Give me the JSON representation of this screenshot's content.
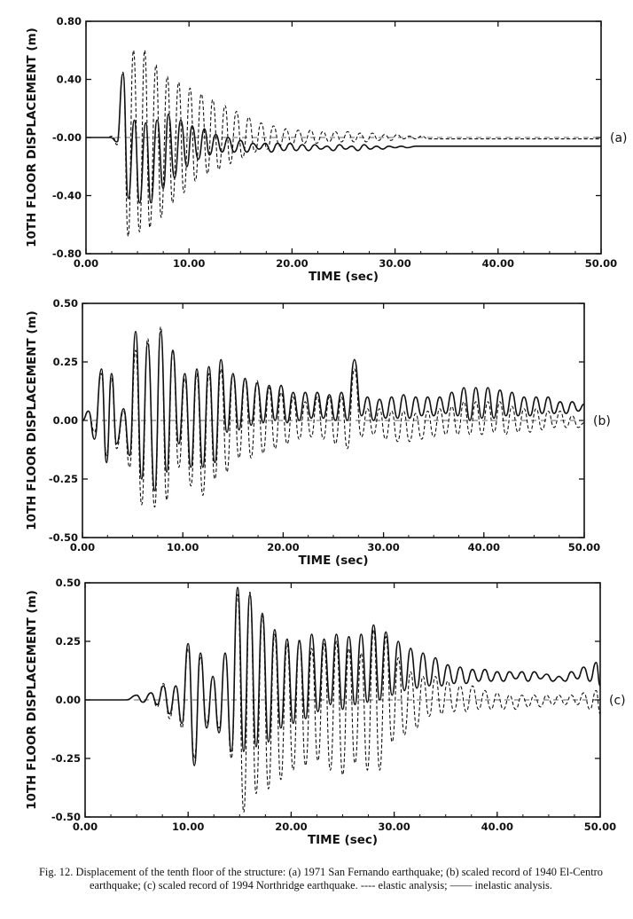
{
  "caption": "Fig. 12. Displacement of the tenth floor of the structure: (a) 1971 San Fernando earthquake; (b) scaled record of 1940 El-Centro earthquake; (c) scaled record of 1994 Northridge earthquake. ---- elastic analysis; —— inelastic analysis.",
  "chart_data": [
    {
      "type": "line",
      "panel_label": "(a)",
      "xlabel": "TIME  (sec)",
      "ylabel": "10TH FLOOR DISPLACEMENT (m)",
      "xlim": [
        0,
        50
      ],
      "ylim": [
        -0.8,
        0.8
      ],
      "x_ticks": [
        "0.00",
        "10.00",
        "20.00",
        "30.00",
        "40.00",
        "50.00"
      ],
      "y_ticks": [
        "-0.80",
        "-0.40",
        "-0.00",
        "0.40",
        "0.80"
      ],
      "grid": false,
      "series": [
        {
          "style": "dashed",
          "x": [
            0,
            2,
            2.6,
            3,
            3.6,
            4.1,
            4.6,
            5.2,
            5.7,
            6.2,
            6.8,
            7.3,
            7.9,
            8.4,
            9,
            9.5,
            10.1,
            10.6,
            11.2,
            11.8,
            12.3,
            12.9,
            13.5,
            14,
            14.6,
            15.2,
            15.8,
            16.4,
            17,
            17.6,
            18.2,
            18.8,
            19.4,
            20,
            20.6,
            21.2,
            21.8,
            22.4,
            23,
            23.6,
            24.2,
            24.8,
            25.4,
            26,
            26.6,
            27.2,
            27.8,
            28.4,
            29,
            29.6,
            30.2,
            30.8,
            31.4,
            32,
            32.6,
            33.2,
            34,
            50
          ],
          "y": [
            0,
            0,
            0.01,
            -0.05,
            0.45,
            -0.68,
            0.6,
            -0.65,
            0.6,
            -0.62,
            0.5,
            -0.55,
            0.42,
            -0.45,
            0.38,
            -0.38,
            0.34,
            -0.3,
            0.3,
            -0.25,
            0.26,
            -0.22,
            0.22,
            -0.18,
            0.18,
            -0.14,
            0.14,
            -0.1,
            0.1,
            -0.08,
            0.08,
            -0.06,
            0.06,
            -0.05,
            0.05,
            -0.04,
            0.05,
            -0.04,
            0.04,
            -0.03,
            0.04,
            -0.03,
            0.04,
            -0.03,
            0.03,
            -0.03,
            0.03,
            -0.02,
            0.02,
            -0.02,
            0.02,
            -0.01,
            0.01,
            -0.01,
            0.01,
            -0.01,
            -0.01,
            -0.01
          ]
        },
        {
          "style": "solid",
          "x": [
            0,
            2.4,
            3,
            3.6,
            4.1,
            4.7,
            5.2,
            5.8,
            6.3,
            6.9,
            7.5,
            8,
            8.6,
            9.2,
            9.8,
            10.3,
            10.9,
            11.5,
            12,
            12.6,
            13.2,
            13.8,
            14.4,
            15,
            15.6,
            16.2,
            16.8,
            17.4,
            18,
            18.6,
            19.2,
            19.8,
            20.4,
            21,
            21.6,
            22.2,
            22.8,
            23.4,
            24,
            24.6,
            25.2,
            25.8,
            26.4,
            27,
            27.6,
            28.2,
            28.8,
            29.4,
            30,
            30.6,
            31.2,
            32,
            50
          ],
          "y": [
            0,
            0,
            -0.03,
            0.44,
            -0.42,
            0.12,
            -0.45,
            0.1,
            -0.45,
            0.12,
            -0.35,
            0.16,
            -0.28,
            0.12,
            -0.2,
            0.08,
            -0.15,
            0.06,
            -0.12,
            0.02,
            -0.1,
            0.0,
            -0.1,
            -0.02,
            -0.1,
            -0.04,
            -0.08,
            -0.04,
            -0.1,
            -0.04,
            -0.09,
            -0.04,
            -0.09,
            -0.05,
            -0.09,
            -0.05,
            -0.08,
            -0.06,
            -0.09,
            -0.05,
            -0.08,
            -0.06,
            -0.09,
            -0.05,
            -0.08,
            -0.06,
            -0.08,
            -0.06,
            -0.07,
            -0.06,
            -0.07,
            -0.06,
            -0.06
          ]
        }
      ]
    },
    {
      "type": "line",
      "panel_label": "(b)",
      "xlabel": "TIME  (sec)",
      "ylabel": "10TH FLOOR DISPLACEMENT (m)",
      "xlim": [
        0,
        50
      ],
      "ylim": [
        -0.5,
        0.5
      ],
      "x_ticks": [
        "0.00",
        "10.00",
        "20.00",
        "30.00",
        "40.00",
        "50.00"
      ],
      "y_ticks": [
        "-0.50",
        "-0.25",
        "0.00",
        "0.25",
        "0.50"
      ],
      "grid": false,
      "series": [
        {
          "style": "dashed",
          "x": [
            0,
            0.6,
            1.2,
            1.9,
            2.4,
            2.9,
            3.4,
            4.1,
            4.7,
            5.3,
            5.9,
            6.5,
            7.2,
            7.8,
            8.4,
            9,
            9.6,
            10.2,
            10.8,
            11.4,
            12,
            12.6,
            13.2,
            13.8,
            14.4,
            15,
            15.6,
            16.2,
            16.8,
            17.4,
            18,
            18.6,
            19.2,
            19.8,
            20.4,
            21,
            21.6,
            22.2,
            22.8,
            23.4,
            24,
            24.6,
            25.2,
            25.8,
            26.4,
            27.1,
            27.8,
            28.4,
            29,
            29.6,
            30.2,
            30.8,
            31.4,
            32,
            32.6,
            33.2,
            33.8,
            34.4,
            35,
            35.6,
            36.2,
            36.8,
            37.4,
            38,
            38.6,
            39.2,
            39.8,
            40.4,
            41,
            41.6,
            42.2,
            42.8,
            43.4,
            44,
            44.6,
            45.2,
            45.8,
            46.4,
            47,
            47.6,
            48.2,
            48.8,
            49.4,
            50
          ],
          "y": [
            0,
            0.04,
            -0.05,
            0.2,
            -0.15,
            0.18,
            -0.12,
            0.04,
            -0.2,
            0.3,
            -0.36,
            0.35,
            -0.37,
            0.4,
            -0.34,
            0.3,
            -0.2,
            0.18,
            -0.28,
            0.2,
            -0.32,
            0.2,
            -0.25,
            0.22,
            -0.22,
            0.2,
            -0.16,
            0.18,
            -0.16,
            0.17,
            -0.14,
            0.14,
            -0.12,
            0.12,
            -0.1,
            0.1,
            -0.08,
            0.08,
            -0.07,
            0.1,
            -0.08,
            0.1,
            -0.1,
            0.1,
            -0.12,
            0.22,
            -0.07,
            0.05,
            -0.06,
            0.05,
            -0.08,
            0.04,
            -0.09,
            0.04,
            -0.09,
            0.03,
            -0.08,
            0.04,
            -0.07,
            0.05,
            -0.06,
            0.06,
            -0.06,
            0.08,
            -0.06,
            0.08,
            -0.06,
            0.08,
            -0.05,
            0.08,
            -0.06,
            0.06,
            -0.05,
            0.05,
            -0.05,
            0.05,
            -0.04,
            0.04,
            -0.03,
            0.04,
            -0.03,
            0.02,
            -0.03,
            -0.01
          ]
        },
        {
          "style": "solid",
          "x": [
            0,
            0.6,
            1.2,
            1.9,
            2.4,
            2.9,
            3.4,
            4.1,
            4.7,
            5.3,
            5.9,
            6.5,
            7.2,
            7.8,
            8.4,
            9,
            9.6,
            10.2,
            10.8,
            11.4,
            12,
            12.6,
            13.2,
            13.8,
            14.4,
            15,
            15.6,
            16.2,
            16.8,
            17.4,
            18,
            18.6,
            19.2,
            19.8,
            20.4,
            21,
            21.6,
            22.2,
            22.8,
            23.4,
            24,
            24.6,
            25.2,
            25.8,
            26.4,
            27.1,
            27.8,
            28.4,
            29,
            29.6,
            30.2,
            30.8,
            31.4,
            32,
            32.6,
            33.2,
            33.8,
            34.4,
            35,
            35.6,
            36.2,
            36.8,
            37.4,
            38,
            38.6,
            39.2,
            39.8,
            40.4,
            41,
            41.6,
            42.2,
            42.8,
            43.4,
            44,
            44.6,
            45.2,
            45.8,
            46.4,
            47,
            47.6,
            48.2,
            48.8,
            49.4,
            50
          ],
          "y": [
            0,
            0.04,
            -0.08,
            0.22,
            -0.18,
            0.2,
            -0.1,
            0.05,
            -0.15,
            0.38,
            -0.25,
            0.33,
            -0.3,
            0.38,
            -0.22,
            0.3,
            -0.1,
            0.2,
            -0.2,
            0.22,
            -0.2,
            0.23,
            -0.18,
            0.26,
            -0.05,
            0.2,
            -0.04,
            0.18,
            -0.02,
            0.16,
            -0.01,
            0.15,
            0.0,
            0.15,
            -0.01,
            0.12,
            0.0,
            0.12,
            0.01,
            0.12,
            0.01,
            0.11,
            0.0,
            0.12,
            0.0,
            0.26,
            0.02,
            0.1,
            0.0,
            0.09,
            0.01,
            0.1,
            0.01,
            0.11,
            0.01,
            0.1,
            0.02,
            0.1,
            0.02,
            0.1,
            0.03,
            0.12,
            0.02,
            0.14,
            0.0,
            0.14,
            0.01,
            0.14,
            0.01,
            0.13,
            0.02,
            0.12,
            0.02,
            0.1,
            0.02,
            0.1,
            0.03,
            0.1,
            0.03,
            0.08,
            0.03,
            0.08,
            0.04,
            0.07
          ]
        }
      ]
    },
    {
      "type": "line",
      "panel_label": "(c)",
      "xlabel": "TIME  (sec)",
      "ylabel": "10TH FLOOR DISPLACEMENT (m)",
      "xlim": [
        0,
        50
      ],
      "ylim": [
        -0.5,
        0.5
      ],
      "x_ticks": [
        "0.00",
        "10.00",
        "20.00",
        "30.00",
        "40.00",
        "50.00"
      ],
      "y_ticks": [
        "-0.50",
        "-0.25",
        "0.00",
        "0.25",
        "0.50"
      ],
      "grid": false,
      "series": [
        {
          "style": "dashed",
          "x": [
            0,
            4,
            5,
            5.6,
            6.4,
            7,
            7.6,
            8.2,
            8.8,
            9.4,
            10,
            10.6,
            11.2,
            11.8,
            12.4,
            13,
            13.6,
            14.2,
            14.8,
            15.4,
            16,
            16.6,
            17.2,
            17.8,
            18.4,
            19,
            19.6,
            20.2,
            20.8,
            21.4,
            22,
            22.6,
            23.2,
            23.8,
            24.4,
            25,
            25.6,
            26.2,
            26.8,
            27.4,
            28,
            28.6,
            29.2,
            29.8,
            30.4,
            31,
            31.6,
            32.2,
            32.8,
            33.4,
            34,
            34.6,
            35.2,
            35.8,
            36.4,
            37,
            37.6,
            38.2,
            38.8,
            39.4,
            40,
            40.6,
            41.2,
            41.8,
            42.4,
            43,
            43.6,
            44.2,
            44.8,
            45.4,
            46,
            46.6,
            47.2,
            47.8,
            48.4,
            49,
            49.6,
            50
          ],
          "y": [
            0,
            0,
            0.02,
            -0.01,
            0.03,
            -0.03,
            0.07,
            -0.08,
            0.06,
            -0.12,
            0.22,
            -0.25,
            0.18,
            -0.1,
            0.1,
            -0.12,
            0.2,
            -0.25,
            0.45,
            -0.48,
            0.46,
            -0.4,
            0.36,
            -0.38,
            0.28,
            -0.34,
            0.24,
            -0.3,
            0.26,
            -0.28,
            0.22,
            -0.26,
            0.24,
            -0.3,
            0.25,
            -0.32,
            0.22,
            -0.27,
            0.2,
            -0.3,
            0.3,
            -0.3,
            0.27,
            -0.18,
            0.18,
            -0.15,
            0.12,
            -0.12,
            0.1,
            -0.07,
            0.1,
            -0.06,
            0.08,
            -0.05,
            0.06,
            -0.05,
            0.06,
            -0.04,
            0.04,
            -0.04,
            0.03,
            -0.04,
            0.02,
            -0.04,
            0.02,
            -0.03,
            0.02,
            -0.03,
            0.02,
            -0.02,
            0.02,
            -0.02,
            0.02,
            -0.02,
            0.03,
            -0.04,
            0.04,
            -0.06
          ]
        },
        {
          "style": "solid",
          "x": [
            0,
            4,
            5,
            5.6,
            6.4,
            7,
            7.6,
            8.2,
            8.8,
            9.4,
            10,
            10.6,
            11.2,
            11.8,
            12.4,
            13,
            13.6,
            14.2,
            14.8,
            15.4,
            16,
            16.6,
            17.2,
            17.8,
            18.4,
            19,
            19.6,
            20.2,
            20.8,
            21.4,
            22,
            22.6,
            23.2,
            23.8,
            24.4,
            25,
            25.6,
            26.2,
            26.8,
            27.4,
            28,
            28.6,
            29.2,
            29.8,
            30.4,
            31,
            31.6,
            32.2,
            32.8,
            33.4,
            34,
            34.6,
            35.2,
            35.8,
            36.4,
            37,
            37.6,
            38.2,
            38.8,
            39.4,
            40,
            40.6,
            41.2,
            41.8,
            42.4,
            43,
            43.6,
            44.2,
            44.8,
            45.4,
            46,
            46.6,
            47.2,
            47.8,
            48.4,
            49,
            49.6,
            50
          ],
          "y": [
            0,
            0,
            0.02,
            -0.01,
            0.03,
            -0.02,
            0.06,
            -0.06,
            0.06,
            -0.1,
            0.24,
            -0.28,
            0.2,
            -0.12,
            0.1,
            -0.14,
            0.2,
            -0.22,
            0.48,
            -0.22,
            0.45,
            -0.2,
            0.37,
            -0.18,
            0.3,
            -0.12,
            0.26,
            -0.1,
            0.25,
            -0.08,
            0.28,
            -0.05,
            0.26,
            -0.02,
            0.28,
            -0.04,
            0.27,
            -0.02,
            0.28,
            -0.01,
            0.32,
            0.0,
            0.29,
            0.02,
            0.25,
            0.04,
            0.22,
            0.05,
            0.2,
            0.06,
            0.18,
            0.06,
            0.15,
            0.07,
            0.14,
            0.07,
            0.13,
            0.08,
            0.13,
            0.08,
            0.12,
            0.08,
            0.12,
            0.09,
            0.12,
            0.08,
            0.12,
            0.09,
            0.11,
            0.08,
            0.1,
            0.08,
            0.12,
            0.09,
            0.14,
            0.08,
            0.16,
            0.06
          ]
        }
      ]
    }
  ]
}
